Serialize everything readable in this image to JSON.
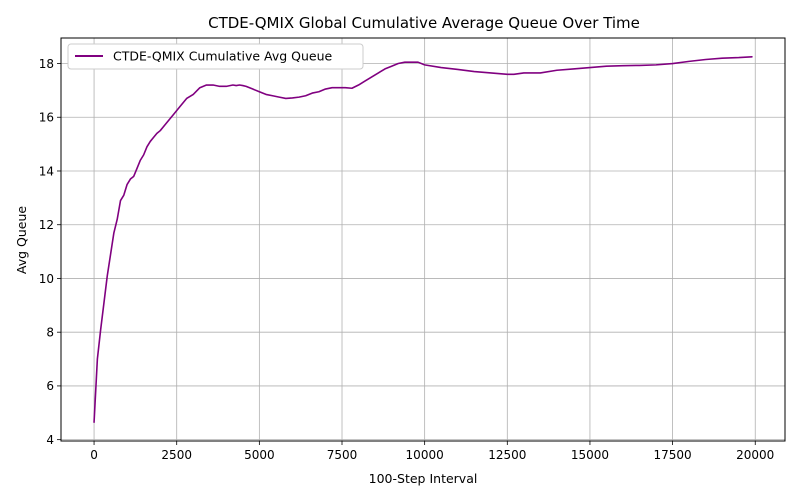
{
  "chart_data": {
    "type": "line",
    "title": "CTDE-QMIX Global Cumulative Average Queue Over Time",
    "xlabel": "100-Step Interval",
    "ylabel": "Avg Queue",
    "xlim": [
      -1000,
      20900
    ],
    "ylim": [
      3.95,
      18.95
    ],
    "xticks": [
      0,
      2500,
      5000,
      7500,
      10000,
      12500,
      15000,
      17500,
      20000
    ],
    "xtick_labels": [
      "0",
      "2500",
      "5000",
      "7500",
      "10000",
      "12500",
      "15000",
      "17500",
      "20000"
    ],
    "yticks": [
      4,
      6,
      8,
      10,
      12,
      14,
      16,
      18
    ],
    "ytick_labels": [
      "4",
      "6",
      "8",
      "10",
      "12",
      "14",
      "16",
      "18"
    ],
    "grid": true,
    "legend_position": "top-left",
    "series": [
      {
        "name": "CTDE-QMIX Cumulative Avg Queue",
        "color": "#800080",
        "x": [
          0,
          100,
          200,
          300,
          400,
          500,
          600,
          700,
          800,
          900,
          1000,
          1100,
          1200,
          1300,
          1400,
          1500,
          1600,
          1700,
          1800,
          1900,
          2000,
          2200,
          2400,
          2600,
          2800,
          3000,
          3200,
          3400,
          3600,
          3800,
          4000,
          4200,
          4300,
          4400,
          4500,
          4600,
          4800,
          5000,
          5200,
          5400,
          5600,
          5800,
          6000,
          6200,
          6400,
          6600,
          6800,
          7000,
          7200,
          7400,
          7600,
          7800,
          8000,
          8200,
          8400,
          8600,
          8800,
          9000,
          9200,
          9400,
          9600,
          9800,
          10000,
          10500,
          11000,
          11500,
          12000,
          12500,
          12700,
          13000,
          13500,
          14000,
          14500,
          15000,
          15500,
          16000,
          16500,
          17000,
          17500,
          18000,
          18500,
          19000,
          19500,
          19900
        ],
        "y": [
          4.65,
          7.0,
          8.1,
          9.1,
          10.1,
          10.9,
          11.7,
          12.2,
          12.9,
          13.1,
          13.5,
          13.7,
          13.8,
          14.1,
          14.4,
          14.6,
          14.9,
          15.1,
          15.25,
          15.4,
          15.5,
          15.8,
          16.1,
          16.4,
          16.7,
          16.85,
          17.1,
          17.2,
          17.2,
          17.15,
          17.15,
          17.2,
          17.18,
          17.2,
          17.18,
          17.15,
          17.05,
          16.95,
          16.85,
          16.8,
          16.75,
          16.7,
          16.72,
          16.75,
          16.8,
          16.9,
          16.95,
          17.05,
          17.1,
          17.1,
          17.1,
          17.08,
          17.2,
          17.35,
          17.5,
          17.65,
          17.8,
          17.9,
          18.0,
          18.05,
          18.05,
          18.05,
          17.95,
          17.85,
          17.78,
          17.7,
          17.65,
          17.6,
          17.6,
          17.65,
          17.65,
          17.75,
          17.8,
          17.85,
          17.9,
          17.92,
          17.93,
          17.95,
          18.0,
          18.08,
          18.15,
          18.2,
          18.22,
          18.25
        ]
      }
    ]
  }
}
